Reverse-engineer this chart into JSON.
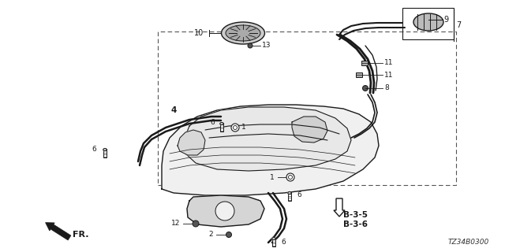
{
  "bg_color": "#ffffff",
  "line_color": "#1a1a1a",
  "text_color": "#1a1a1a",
  "diagram_code": "TZ34B0300",
  "figsize": [
    6.4,
    3.2
  ],
  "dpi": 100
}
